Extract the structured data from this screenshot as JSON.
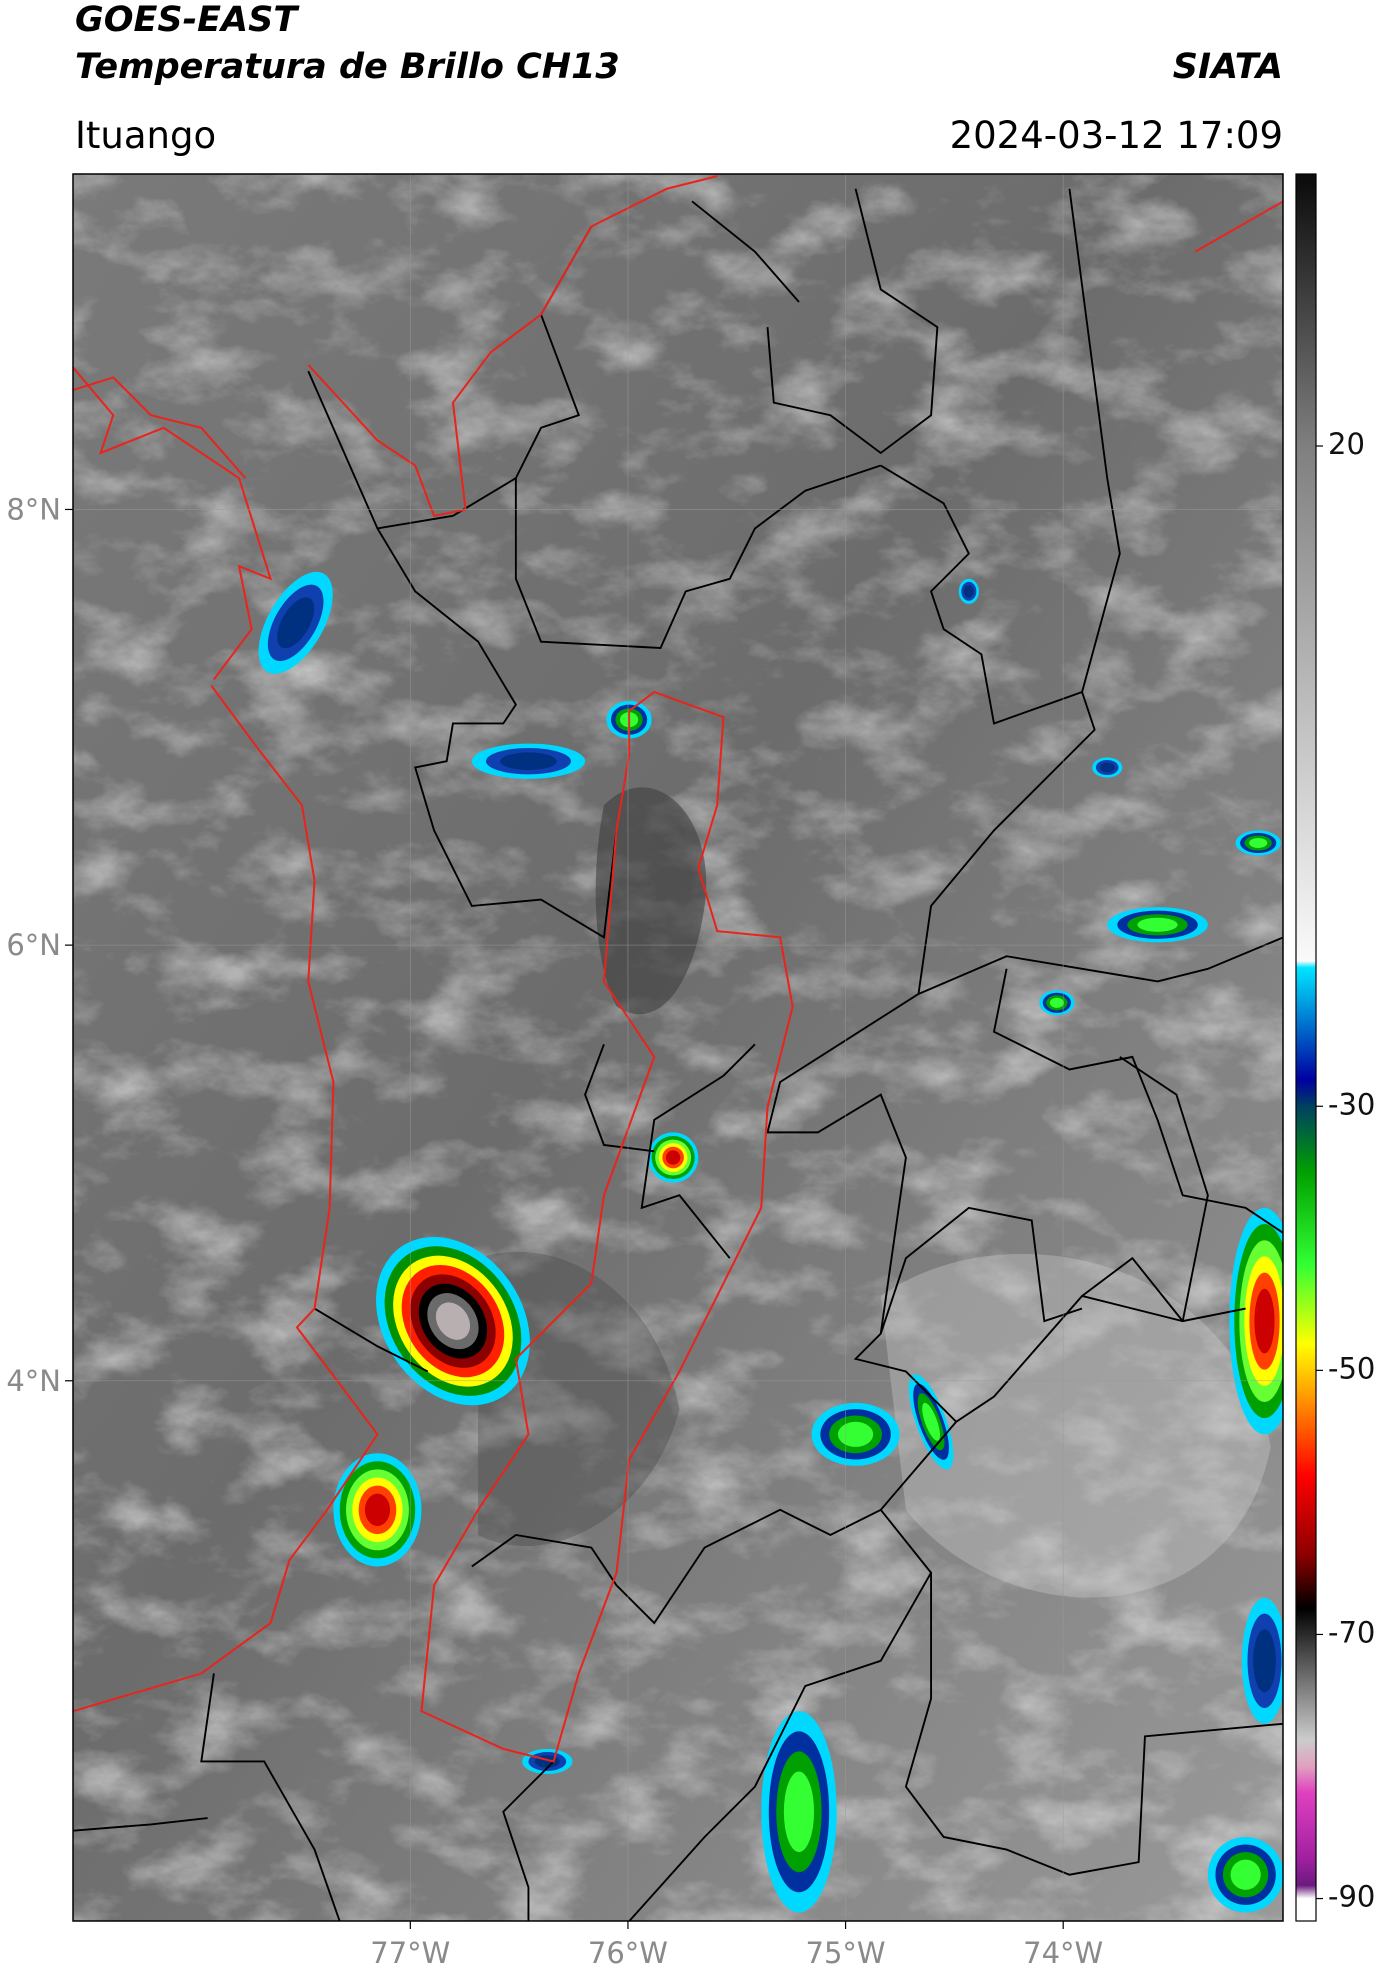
{
  "header": {
    "satellite": "GOES-EAST",
    "product": "Temperatura de Brillo CH13",
    "agency": "SIATA",
    "region": "Ituango",
    "timestamp": "2024-03-12 17:09"
  },
  "map": {
    "lon_range": [
      -78.55,
      -72.99
    ],
    "lat_range": [
      1.52,
      9.54
    ],
    "lat_ticks": [
      {
        "value": 8,
        "label": "8°N"
      },
      {
        "value": 6,
        "label": "6°N"
      },
      {
        "value": 4,
        "label": "4°N"
      }
    ],
    "lon_ticks": [
      {
        "value": -77,
        "label": "77°W"
      },
      {
        "value": -76,
        "label": "76°W"
      },
      {
        "value": -75,
        "label": "75°W"
      },
      {
        "value": -74,
        "label": "74°W"
      }
    ],
    "grid": true
  },
  "colorbar": {
    "range": [
      -91.7,
      40.6
    ],
    "ticks": [
      20,
      -30,
      -50,
      -70,
      -90
    ],
    "stops": [
      {
        "value": 40,
        "color": "#0d0d0d"
      },
      {
        "value": 20,
        "color": "#7f7f7f"
      },
      {
        "value": -19,
        "color": "#fafafa"
      },
      {
        "value": -19.5,
        "color": "#00e5ff"
      },
      {
        "value": -28,
        "color": "#0000a0"
      },
      {
        "value": -30,
        "color": "#004060"
      },
      {
        "value": -35,
        "color": "#00a000"
      },
      {
        "value": -42,
        "color": "#33ff33"
      },
      {
        "value": -48,
        "color": "#ffff00"
      },
      {
        "value": -52,
        "color": "#ff9900"
      },
      {
        "value": -58,
        "color": "#ff0000"
      },
      {
        "value": -64,
        "color": "#8b0000"
      },
      {
        "value": -68,
        "color": "#000000"
      },
      {
        "value": -72,
        "color": "#555555"
      },
      {
        "value": -78,
        "color": "#cccccc"
      },
      {
        "value": -80,
        "color": "#e0a0c0"
      },
      {
        "value": -82,
        "color": "#e040c0"
      },
      {
        "value": -87,
        "color": "#a020a0"
      },
      {
        "value": -89,
        "color": "#6a1a80"
      },
      {
        "value": -90,
        "color": "#ffffff"
      }
    ]
  }
}
